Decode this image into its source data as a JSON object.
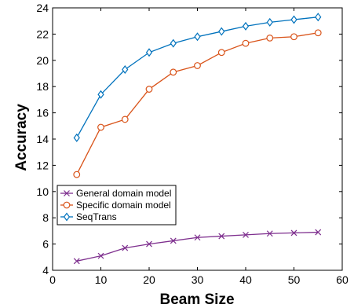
{
  "chart_data": {
    "type": "line",
    "xlabel": "Beam Size",
    "ylabel": "Accuracy",
    "xlim": [
      0,
      60
    ],
    "ylim": [
      4,
      24
    ],
    "xticks": [
      0,
      10,
      20,
      30,
      40,
      50,
      60
    ],
    "yticks": [
      4,
      6,
      8,
      10,
      12,
      14,
      16,
      18,
      20,
      22,
      24
    ],
    "grid": false,
    "legend_position": "lower-left",
    "x": [
      5,
      10,
      15,
      20,
      25,
      30,
      35,
      40,
      45,
      50,
      55
    ],
    "series": [
      {
        "name": "General domain model",
        "marker": "x",
        "color": "#7e2f8e",
        "values": [
          4.7,
          5.1,
          5.7,
          6.0,
          6.25,
          6.5,
          6.6,
          6.7,
          6.8,
          6.85,
          6.9
        ]
      },
      {
        "name": "Specific domain model",
        "marker": "circle",
        "color": "#d95319",
        "values": [
          11.3,
          14.9,
          15.5,
          17.8,
          19.1,
          19.6,
          20.6,
          21.3,
          21.7,
          21.8,
          22.1
        ]
      },
      {
        "name": "SeqTrans",
        "marker": "diamond",
        "color": "#0072bd",
        "values": [
          14.1,
          17.4,
          19.3,
          20.6,
          21.3,
          21.8,
          22.2,
          22.6,
          22.9,
          23.1,
          23.3
        ]
      }
    ]
  }
}
